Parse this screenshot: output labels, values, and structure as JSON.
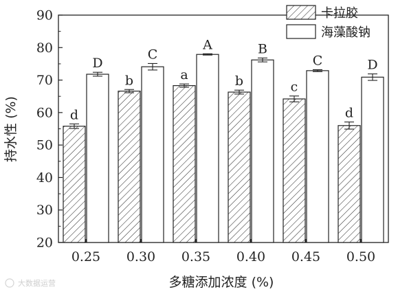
{
  "chart_data": {
    "type": "bar",
    "xlabel": "多糖添加浓度 (%)",
    "ylabel": "持水性 (%)",
    "categories": [
      "0.25",
      "0.30",
      "0.35",
      "0.40",
      "0.45",
      "0.50"
    ],
    "ylim": [
      20,
      90
    ],
    "yticks": [
      20,
      30,
      40,
      50,
      60,
      70,
      80,
      90
    ],
    "legend_position": "top-right",
    "series": [
      {
        "name": "卡拉胶",
        "pattern": "hatched",
        "color": "#222222",
        "values": [
          55.8,
          66.6,
          68.3,
          66.3,
          64.2,
          56.0
        ],
        "errors": [
          0.7,
          0.5,
          0.5,
          0.6,
          0.9,
          1.1
        ],
        "labels": [
          "d",
          "b",
          "a",
          "b",
          "c",
          "d"
        ]
      },
      {
        "name": "海藻酸钠",
        "pattern": "open",
        "color": "#222222",
        "values": [
          71.8,
          74.1,
          77.9,
          76.2,
          72.9,
          70.9
        ],
        "errors": [
          0.6,
          1.0,
          0.2,
          0.6,
          0.3,
          1.0
        ],
        "labels": [
          "D",
          "C",
          "A",
          "B",
          "C",
          "D"
        ]
      }
    ]
  },
  "watermark": {
    "text": "大数据运营",
    "icon": "watermark-logo-icon"
  }
}
